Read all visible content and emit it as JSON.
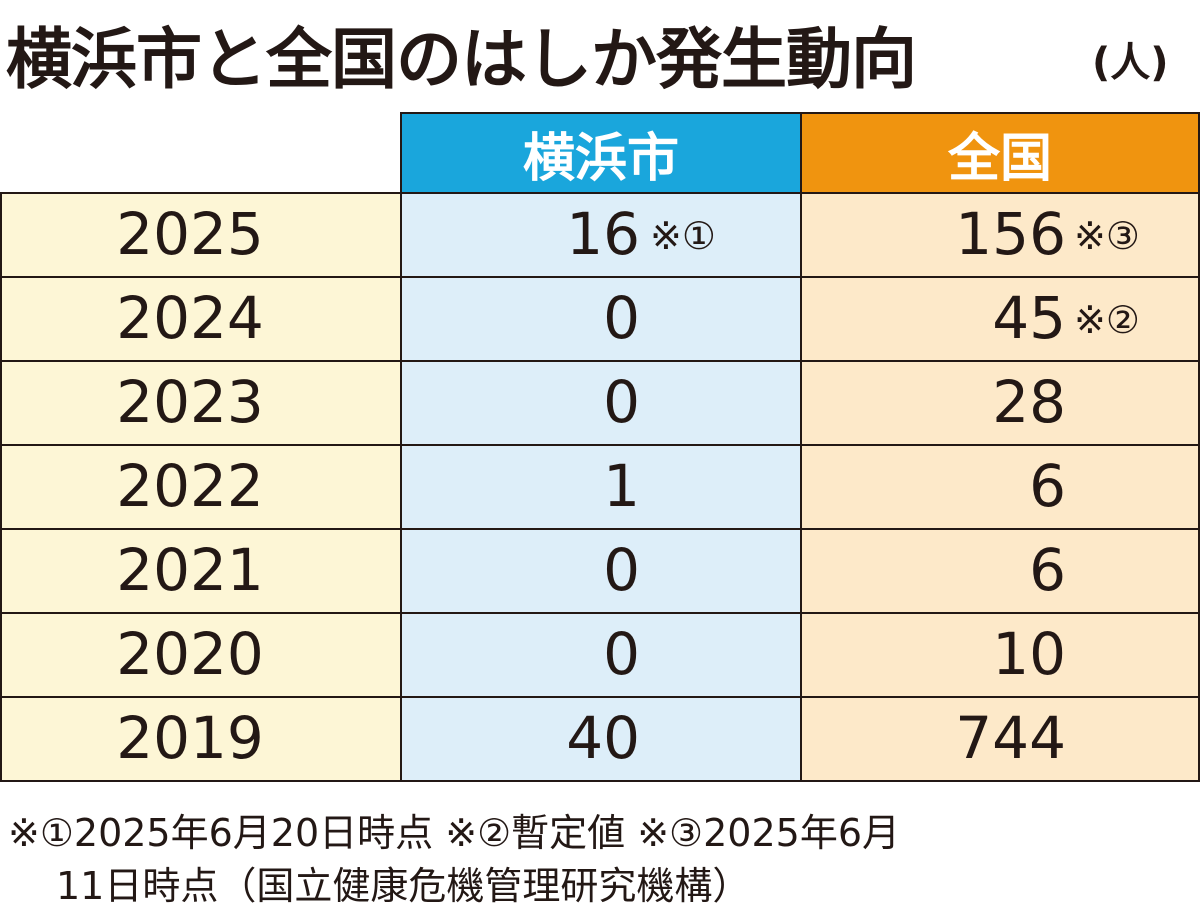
{
  "header": {
    "title": "横浜市と全国のはしか発生動向",
    "unit": "(人)"
  },
  "table": {
    "columns": [
      "横浜市",
      "全国"
    ],
    "rows": [
      {
        "year": "2025",
        "yokohama": 16,
        "yokohama_note": "※①",
        "national": 156,
        "national_note": "※③"
      },
      {
        "year": "2024",
        "yokohama": 0,
        "national": 45,
        "national_note": "※②"
      },
      {
        "year": "2023",
        "yokohama": 0,
        "national": 28
      },
      {
        "year": "2022",
        "yokohama": 1,
        "national": 6
      },
      {
        "year": "2021",
        "yokohama": 0,
        "national": 6
      },
      {
        "year": "2020",
        "yokohama": 0,
        "national": 10
      },
      {
        "year": "2019",
        "yokohama": 40,
        "national": 744
      }
    ]
  },
  "footnote": [
    "※①2025年6月20日時点 ※②暫定値 ※③2025年6月",
    "11日時点（国立健康危機管理研究機構）"
  ]
}
